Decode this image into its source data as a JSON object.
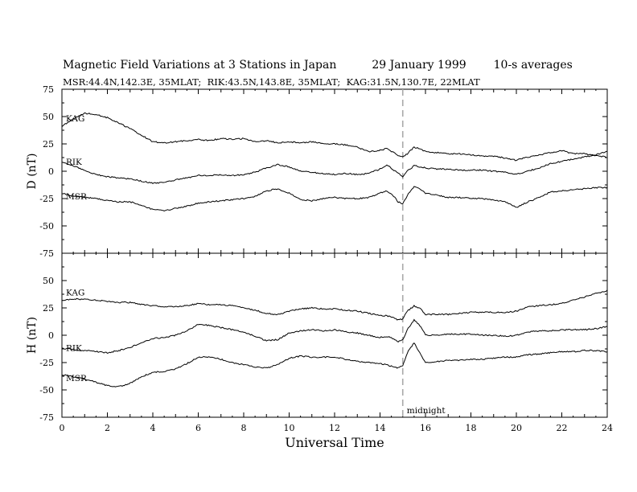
{
  "title": {
    "main": "Magnetic Field Variations at 3 Stations in Japan",
    "date": "29 January 1999",
    "averaging": "10-s averages"
  },
  "subtitle": "MSR:44.4N,142.3E, 35MLAT;  RIK:43.5N,143.8E, 35MLAT;  KAG:31.5N,130.7E, 22MLAT",
  "chart_data": [
    {
      "type": "line",
      "panel": "D",
      "ylabel": "D (nT)",
      "xlabel": "",
      "xlim": [
        0,
        24
      ],
      "ylim": [
        -75,
        75
      ],
      "yticks": [
        "75",
        "50",
        "25",
        "0",
        "-25",
        "-50",
        "-75"
      ],
      "annotation": {
        "x": 15,
        "label": ""
      },
      "series": [
        {
          "name": "KAG",
          "x": [
            0,
            0.5,
            1,
            1.5,
            2,
            2.5,
            3,
            3.5,
            4,
            4.5,
            5,
            5.5,
            6,
            6.5,
            7,
            7.5,
            8,
            8.5,
            9,
            9.5,
            10,
            10.5,
            11,
            11.5,
            12,
            12.5,
            13,
            13.5,
            14,
            14.3,
            14.6,
            14.8,
            15,
            15.2,
            15.5,
            15.8,
            16,
            16.5,
            17,
            17.5,
            18,
            18.5,
            19,
            19.5,
            20,
            20.5,
            21,
            21.5,
            22,
            22.5,
            23,
            23.5,
            24
          ],
          "values": [
            41,
            48,
            53,
            52,
            49,
            44,
            39,
            33,
            27,
            26,
            27,
            28,
            29,
            28,
            30,
            29,
            30,
            27,
            28,
            26,
            27,
            26,
            27,
            25,
            25,
            24,
            22,
            18,
            19,
            21,
            17,
            14,
            13,
            16,
            22,
            20,
            18,
            17,
            16,
            16,
            15,
            14,
            14,
            12,
            10,
            13,
            15,
            17,
            19,
            16,
            16,
            14,
            13
          ]
        },
        {
          "name": "RIK",
          "x": [
            0,
            0.5,
            1,
            1.5,
            2,
            2.5,
            3,
            3.5,
            4,
            4.5,
            5,
            5.5,
            6,
            6.5,
            7,
            7.5,
            8,
            8.5,
            9,
            9.5,
            10,
            10.5,
            11,
            11.5,
            12,
            12.5,
            13,
            13.5,
            14,
            14.3,
            14.6,
            14.8,
            15,
            15.2,
            15.5,
            15.8,
            16,
            16.5,
            17,
            17.5,
            18,
            18.5,
            19,
            19.5,
            20,
            20.5,
            21,
            21.5,
            22,
            22.5,
            23,
            23.5,
            24
          ],
          "values": [
            8,
            5,
            1,
            -3,
            -5,
            -6,
            -7,
            -9,
            -11,
            -10,
            -8,
            -6,
            -4,
            -4,
            -3,
            -4,
            -3,
            -1,
            3,
            6,
            4,
            0,
            -1,
            -2,
            -3,
            -2,
            -3,
            -2,
            2,
            6,
            1,
            -2,
            -5,
            0,
            5,
            4,
            3,
            2,
            2,
            1,
            1,
            1,
            0,
            -1,
            -3,
            0,
            3,
            7,
            9,
            11,
            13,
            15,
            18
          ]
        },
        {
          "name": "MSR",
          "x": [
            0,
            0.5,
            1,
            1.5,
            2,
            2.5,
            3,
            3.5,
            4,
            4.5,
            5,
            5.5,
            6,
            6.5,
            7,
            7.5,
            8,
            8.5,
            9,
            9.5,
            10,
            10.5,
            11,
            11.5,
            12,
            12.5,
            13,
            13.5,
            14,
            14.3,
            14.6,
            14.8,
            15,
            15.2,
            15.5,
            15.8,
            16,
            16.5,
            17,
            17.5,
            18,
            18.5,
            19,
            19.5,
            20,
            20.5,
            21,
            21.5,
            22,
            22.5,
            23,
            23.5,
            24
          ],
          "values": [
            -20,
            -23,
            -24,
            -25,
            -27,
            -28,
            -28,
            -31,
            -35,
            -36,
            -34,
            -32,
            -29,
            -28,
            -27,
            -26,
            -25,
            -23,
            -18,
            -16,
            -20,
            -26,
            -27,
            -25,
            -24,
            -25,
            -25,
            -24,
            -20,
            -18,
            -23,
            -28,
            -30,
            -22,
            -14,
            -17,
            -20,
            -22,
            -24,
            -24,
            -25,
            -25,
            -26,
            -28,
            -33,
            -28,
            -24,
            -19,
            -18,
            -17,
            -16,
            -15,
            -15
          ]
        }
      ]
    },
    {
      "type": "line",
      "panel": "H",
      "ylabel": "H (nT)",
      "xlabel": "Universal Time",
      "xlim": [
        0,
        24
      ],
      "ylim": [
        -75,
        75
      ],
      "xticks": [
        "0",
        "2",
        "4",
        "6",
        "8",
        "10",
        "12",
        "14",
        "16",
        "18",
        "20",
        "22",
        "24"
      ],
      "yticks": [
        "50",
        "25",
        "0",
        "-25",
        "-50",
        "-75"
      ],
      "annotation": {
        "x": 15,
        "label": "midnight"
      },
      "series": [
        {
          "name": "KAG",
          "x": [
            0,
            0.5,
            1,
            1.5,
            2,
            2.5,
            3,
            3.5,
            4,
            4.5,
            5,
            5.5,
            6,
            6.5,
            7,
            7.5,
            8,
            8.5,
            9,
            9.5,
            10,
            10.5,
            11,
            11.5,
            12,
            12.5,
            13,
            13.5,
            14,
            14.3,
            14.6,
            14.8,
            15,
            15.2,
            15.5,
            15.8,
            16,
            16.5,
            17,
            17.5,
            18,
            18.5,
            19,
            19.5,
            20,
            20.5,
            21,
            21.5,
            22,
            22.5,
            23,
            23.5,
            24
          ],
          "values": [
            32,
            33,
            33,
            32,
            31,
            30,
            30,
            28,
            27,
            26,
            26,
            27,
            29,
            28,
            28,
            27,
            25,
            23,
            20,
            19,
            22,
            24,
            25,
            24,
            24,
            23,
            22,
            20,
            18,
            18,
            16,
            14,
            15,
            22,
            27,
            24,
            19,
            19,
            19,
            20,
            21,
            21,
            21,
            21,
            22,
            26,
            27,
            28,
            29,
            32,
            35,
            38,
            41
          ]
        },
        {
          "name": "RIK",
          "x": [
            0,
            0.5,
            1,
            1.5,
            2,
            2.5,
            3,
            3.5,
            4,
            4.5,
            5,
            5.5,
            6,
            6.5,
            7,
            7.5,
            8,
            8.5,
            9,
            9.5,
            10,
            10.5,
            11,
            11.5,
            12,
            12.5,
            13,
            13.5,
            14,
            14.3,
            14.6,
            14.8,
            15,
            15.2,
            15.5,
            15.8,
            16,
            16.5,
            17,
            17.5,
            18,
            18.5,
            19,
            19.5,
            20,
            20.5,
            21,
            21.5,
            22,
            22.5,
            23,
            23.5,
            24
          ],
          "values": [
            -12,
            -13,
            -14,
            -15,
            -16,
            -14,
            -11,
            -7,
            -3,
            -2,
            0,
            4,
            10,
            9,
            7,
            5,
            3,
            -1,
            -5,
            -4,
            2,
            4,
            5,
            4,
            5,
            3,
            2,
            0,
            -2,
            -1,
            -3,
            -6,
            -4,
            5,
            14,
            8,
            0,
            0,
            1,
            1,
            1,
            0,
            0,
            -1,
            0,
            3,
            4,
            4,
            5,
            5,
            5,
            6,
            8
          ]
        },
        {
          "name": "MSR",
          "x": [
            0,
            0.5,
            1,
            1.5,
            2,
            2.5,
            3,
            3.5,
            4,
            4.5,
            5,
            5.5,
            6,
            6.5,
            7,
            7.5,
            8,
            8.5,
            9,
            9.5,
            10,
            10.5,
            11,
            11.5,
            12,
            12.5,
            13,
            13.5,
            14,
            14.3,
            14.6,
            14.8,
            15,
            15.2,
            15.5,
            15.8,
            16,
            16.5,
            17,
            17.5,
            18,
            18.5,
            19,
            19.5,
            20,
            20.5,
            21,
            21.5,
            22,
            22.5,
            23,
            23.5,
            24
          ],
          "values": [
            -36,
            -38,
            -40,
            -43,
            -46,
            -47,
            -44,
            -38,
            -34,
            -33,
            -31,
            -26,
            -20,
            -20,
            -22,
            -25,
            -27,
            -29,
            -30,
            -27,
            -21,
            -19,
            -20,
            -20,
            -20,
            -22,
            -24,
            -25,
            -26,
            -27,
            -29,
            -30,
            -28,
            -16,
            -7,
            -18,
            -25,
            -24,
            -23,
            -23,
            -22,
            -22,
            -21,
            -20,
            -20,
            -18,
            -17,
            -16,
            -15,
            -15,
            -14,
            -14,
            -15
          ]
        }
      ]
    }
  ]
}
